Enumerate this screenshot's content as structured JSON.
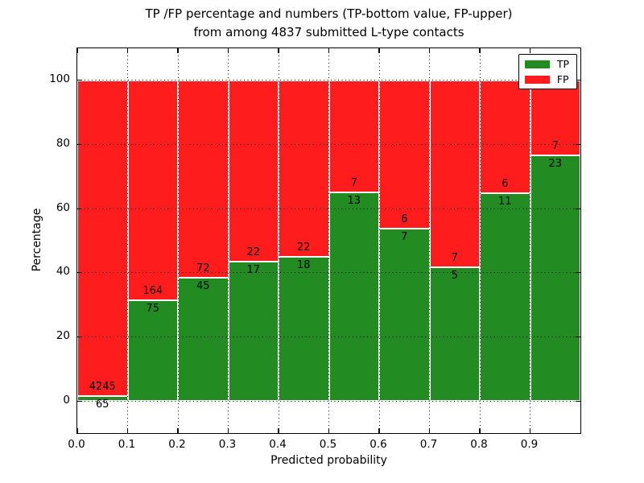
{
  "title_line1": "TP /FP percentage and numbers (TP-bottom value, FP-upper)",
  "title_line2": "from among 4837 submitted L-type contacts",
  "chart_data": {
    "type": "bar",
    "stacked": true,
    "normalized_to_percent": true,
    "title": "TP /FP percentage and numbers (TP-bottom value, FP-upper) from among 4837 submitted L-type contacts",
    "xlabel": "Predicted probability",
    "ylabel": "Percentage",
    "total_contacts": 4837,
    "bin_starts": [
      0.0,
      0.1,
      0.2,
      0.3,
      0.4,
      0.5,
      0.6,
      0.7,
      0.8,
      0.9
    ],
    "bin_width": 0.1,
    "series": [
      {
        "name": "TP",
        "color": "#228b22",
        "counts": [
          65,
          75,
          45,
          17,
          18,
          13,
          7,
          5,
          11,
          23
        ]
      },
      {
        "name": "FP",
        "color": "#ff1c1c",
        "counts": [
          4245,
          164,
          72,
          22,
          22,
          7,
          6,
          7,
          6,
          7
        ]
      }
    ],
    "tp_percent": [
      1.5,
      31.4,
      38.5,
      43.6,
      45.0,
      65.0,
      53.8,
      41.7,
      64.7,
      76.7
    ],
    "x_ticks": [
      "0.0",
      "0.1",
      "0.2",
      "0.3",
      "0.4",
      "0.5",
      "0.6",
      "0.7",
      "0.8",
      "0.9"
    ],
    "y_ticks": [
      0,
      20,
      40,
      60,
      80,
      100
    ],
    "xlim": [
      0.0,
      1.0
    ],
    "ylim": [
      -10,
      110
    ],
    "grid": true,
    "grid_style": "dotted",
    "bar_edge_color": "#ffffff",
    "legend_position": "upper right",
    "legend_entries": [
      "TP",
      "FP"
    ]
  }
}
